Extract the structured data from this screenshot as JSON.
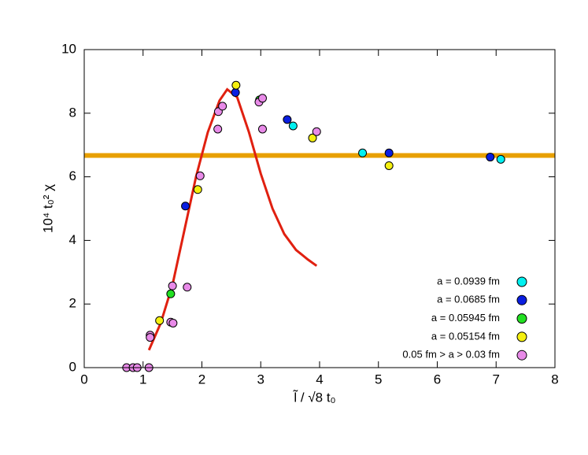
{
  "chart_data": {
    "type": "scatter",
    "xlabel": "l̃ / √8 t₀",
    "ylabel": "10⁴ t₀² χ",
    "xlim": [
      0,
      8
    ],
    "xticks": [
      0,
      1,
      2,
      3,
      4,
      5,
      6,
      7,
      8
    ],
    "ylim": [
      0,
      10
    ],
    "yticks": [
      0,
      2,
      4,
      6,
      8,
      10
    ],
    "legend": "lower right",
    "series": [
      {
        "name": "a = 0.0939 fm",
        "color": "#00f0f0",
        "x": [
          3.55,
          4.73,
          7.08
        ],
        "y": [
          7.6,
          6.75,
          6.55
        ]
      },
      {
        "name": "a = 0.0685 fm",
        "color": "#0a1ee0",
        "x": [
          1.72,
          2.57,
          3.45,
          5.18,
          6.9
        ],
        "y": [
          5.08,
          8.65,
          7.8,
          6.75,
          6.62
        ]
      },
      {
        "name": "a = 0.05945 fm",
        "color": "#22e022",
        "x": [
          1.47,
          2.98
        ],
        "y": [
          2.32,
          8.42
        ]
      },
      {
        "name": "a = 0.05154 fm",
        "color": "#f5f010",
        "x": [
          1.28,
          1.93,
          2.58,
          3.88,
          5.18
        ],
        "y": [
          1.48,
          5.6,
          8.88,
          7.22,
          6.35
        ]
      },
      {
        "name": "0.05 fm > a > 0.03 fm",
        "color": "#e88ae8",
        "x": [
          0.72,
          0.83,
          0.9,
          1.1,
          1.12,
          1.12,
          1.5,
          1.47,
          1.51,
          1.75,
          1.97,
          2.27,
          2.28,
          2.35,
          2.97,
          3.03,
          3.03,
          3.95
        ],
        "y": [
          0,
          0,
          0,
          0,
          1.02,
          0.95,
          2.57,
          1.43,
          1.4,
          2.53,
          6.03,
          7.5,
          8.05,
          8.22,
          8.35,
          8.47,
          7.5,
          7.42
        ]
      }
    ],
    "curves": [
      {
        "color": "#e02010",
        "x": [
          1.1,
          1.3,
          1.5,
          1.7,
          1.9,
          2.1,
          2.3,
          2.43,
          2.6,
          2.8,
          3.0,
          3.2,
          3.4,
          3.6,
          3.8,
          3.95
        ],
        "y": [
          0.55,
          1.4,
          2.6,
          4.3,
          6.0,
          7.4,
          8.4,
          8.75,
          8.5,
          7.4,
          6.1,
          5.0,
          4.2,
          3.7,
          3.4,
          3.2
        ]
      }
    ],
    "hlines": [
      {
        "color": "#e8a000",
        "y": 6.67
      }
    ]
  }
}
